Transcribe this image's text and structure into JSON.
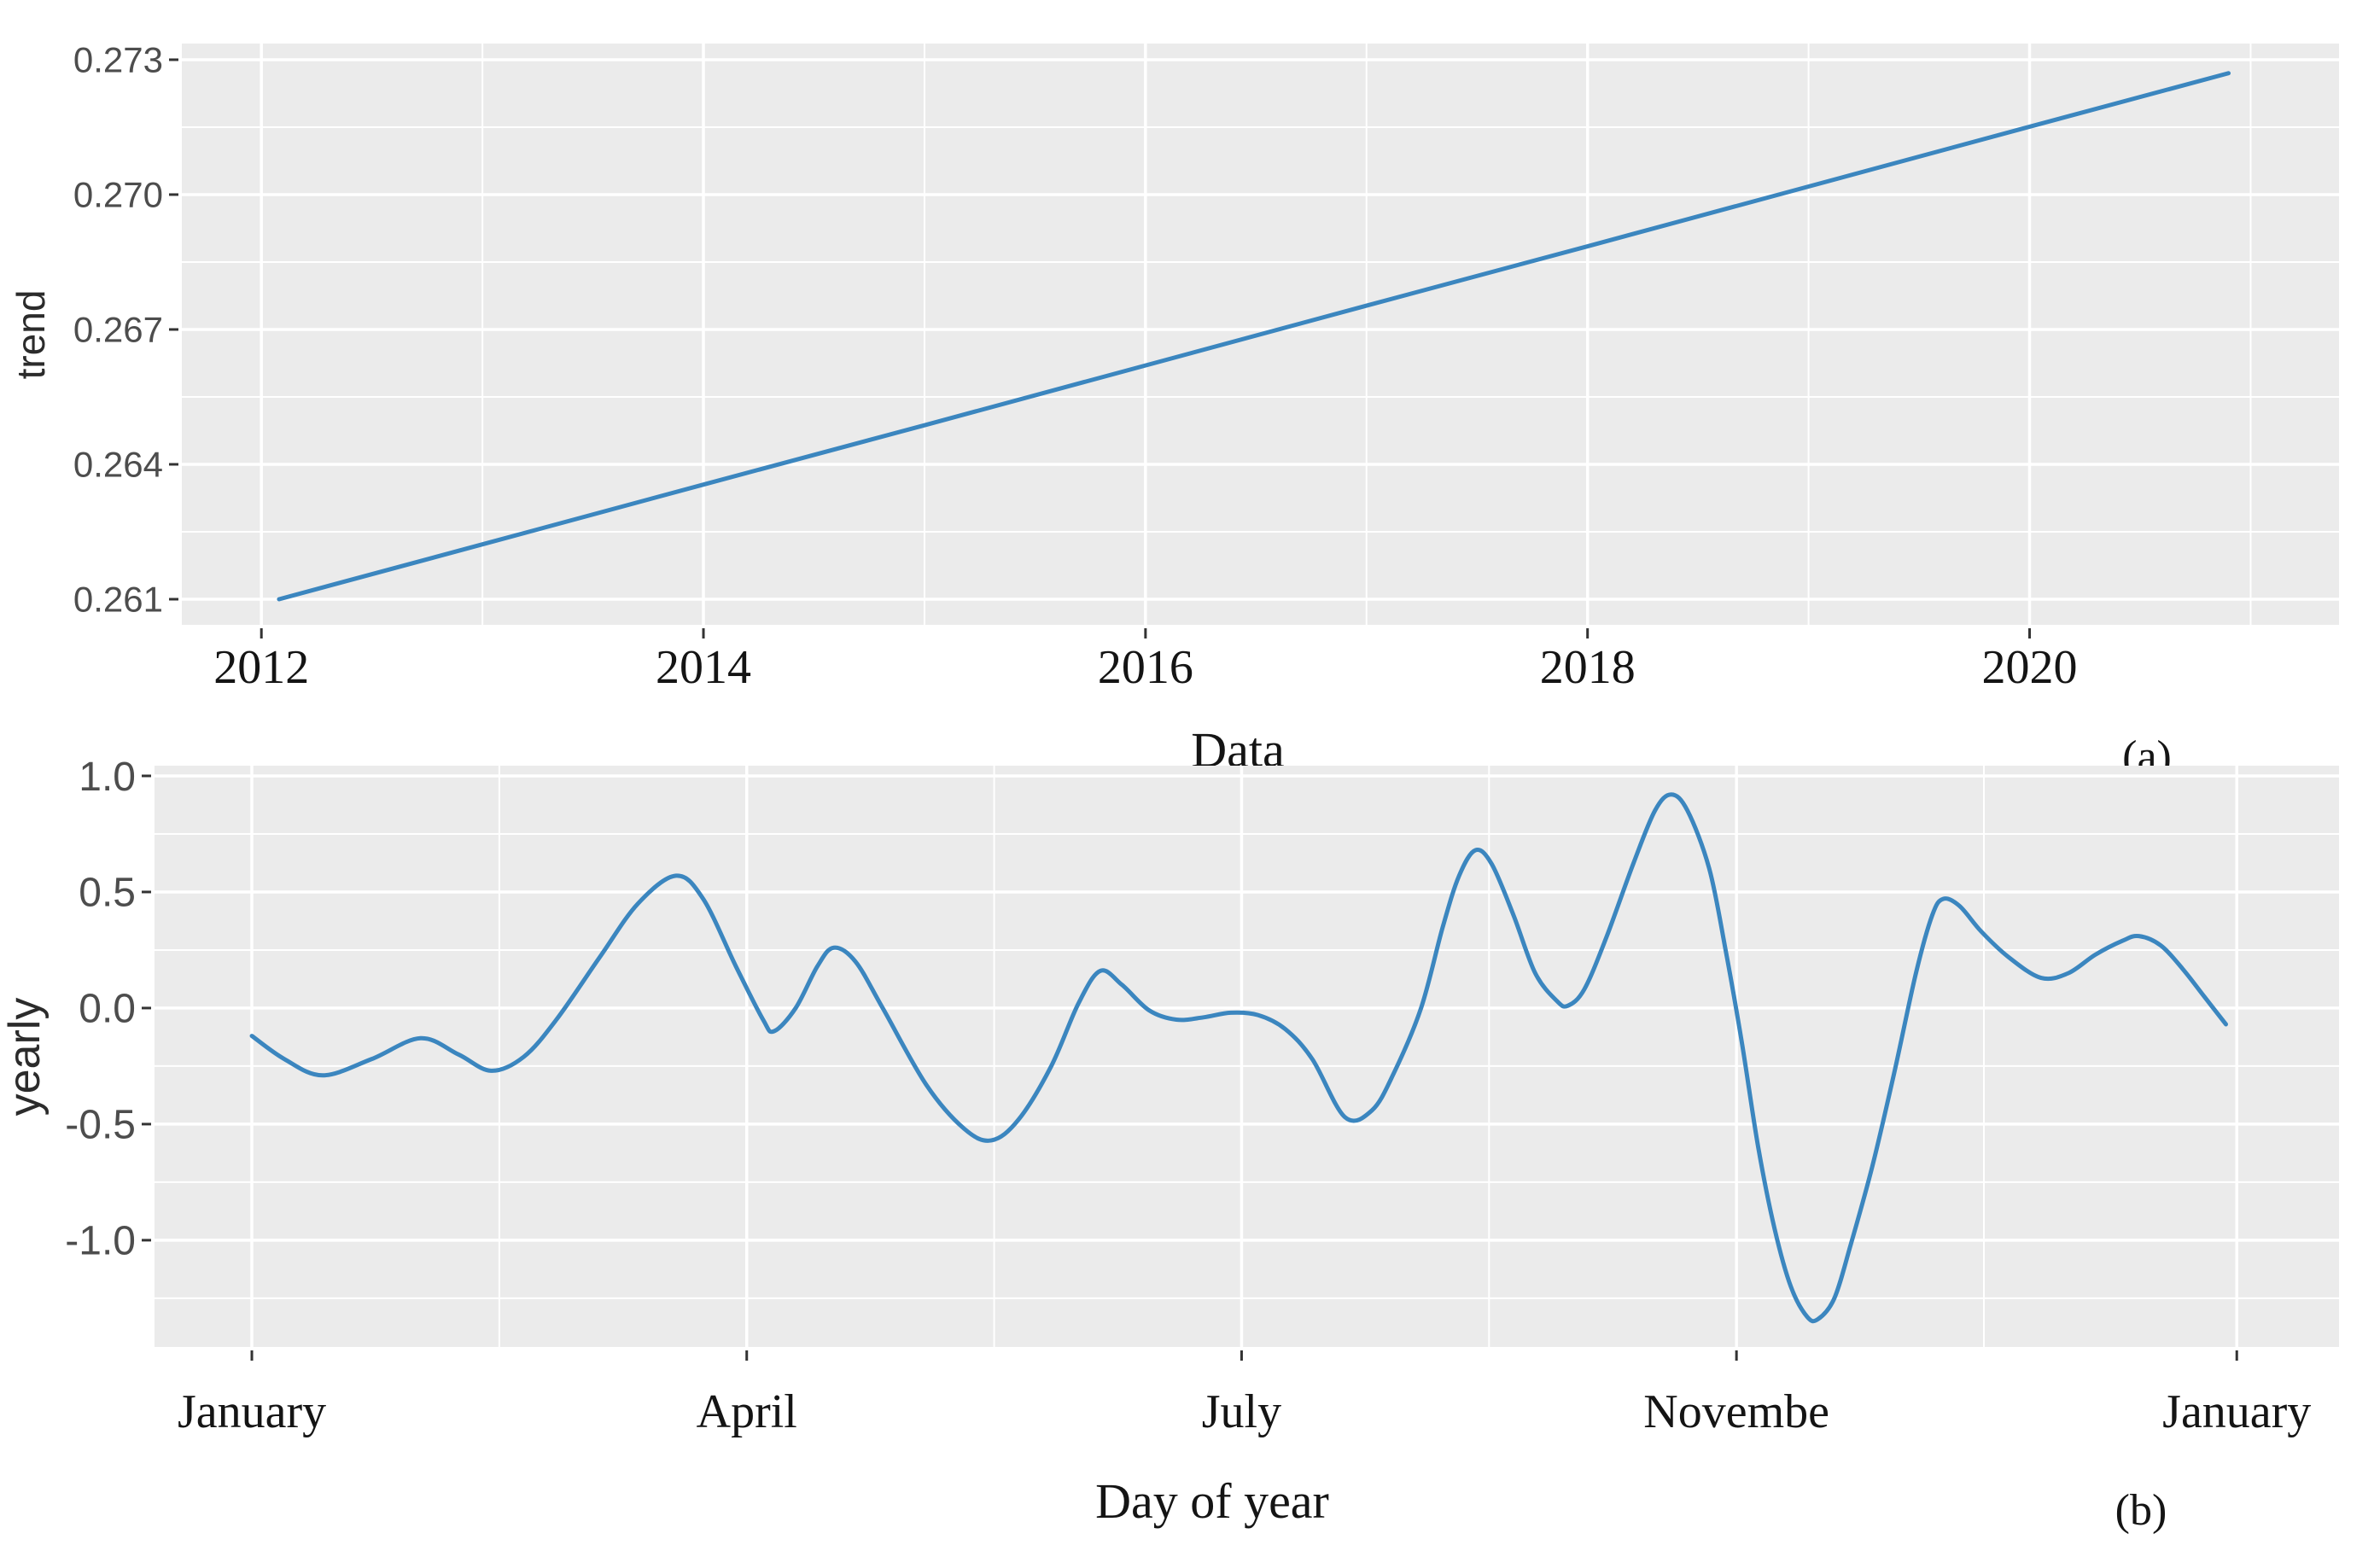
{
  "colors": {
    "line": "#3b86bf",
    "panel_bg": "#ebebeb",
    "grid": "#ffffff",
    "tick_label": "#4d4d4d",
    "serif_label": "#141414",
    "axis_title": "#2b2b2b",
    "tick_mark": "#333333"
  },
  "chart_data": [
    {
      "id": "trend",
      "type": "line",
      "title": "",
      "tag": "(a)",
      "xlabel": "Data",
      "ylabel": "trend",
      "legend": "none",
      "grid": "major+minor",
      "x_ticks": {
        "values": [
          2012,
          2014,
          2016,
          2018,
          2020
        ],
        "labels": [
          "2012",
          "2014",
          "2016",
          "2018",
          "2020"
        ]
      },
      "y_ticks": {
        "values": [
          0.261,
          0.264,
          0.267,
          0.27,
          0.273
        ],
        "labels": [
          "0.261",
          "0.264",
          "0.267",
          "0.270",
          "0.273"
        ]
      },
      "xlim": [
        2011.64,
        2021.4
      ],
      "ylim": [
        0.26043,
        0.27336
      ],
      "series": [
        {
          "name": "trend",
          "x": [
            2012.08,
            2013,
            2014,
            2015,
            2016,
            2017,
            2018,
            2019,
            2020,
            2020.9
          ],
          "y": [
            0.261,
            0.26222,
            0.26355,
            0.26487,
            0.2662,
            0.26753,
            0.26885,
            0.27018,
            0.27151,
            0.2727
          ]
        }
      ]
    },
    {
      "id": "yearly",
      "type": "line",
      "title": "",
      "tag": "(b)",
      "xlabel": "Day of year",
      "ylabel": "yearly",
      "legend": "none",
      "grid": "major+minor",
      "x_ticks": {
        "values": [
          0,
          91,
          182,
          273,
          365
        ],
        "labels": [
          "January",
          "April",
          "July",
          "Novembe",
          "January"
        ]
      },
      "y_ticks": {
        "values": [
          -1.0,
          -0.5,
          0.0,
          0.5,
          1.0
        ],
        "labels": [
          "-1.0",
          "-0.5",
          "0.0",
          "0.5",
          "1.0"
        ]
      },
      "xlim": [
        -17.9,
        383.8
      ],
      "ylim": [
        -1.46,
        1.044
      ],
      "series": [
        {
          "name": "yearly",
          "x": [
            0,
            6,
            13,
            22,
            31,
            38,
            44,
            50,
            56,
            64,
            71,
            78,
            83,
            89,
            94,
            96,
            100,
            104,
            107,
            111,
            116,
            124,
            131,
            136,
            141,
            147,
            152,
            156,
            160,
            165,
            170,
            175,
            180,
            185,
            190,
            195,
            201,
            206,
            210,
            215,
            219,
            222,
            225,
            228,
            232,
            236,
            240,
            242,
            245,
            249,
            254,
            258,
            261,
            264,
            268,
            271,
            274,
            277,
            280,
            283,
            286,
            288,
            291,
            294,
            298,
            302,
            306,
            309,
            311,
            314,
            318,
            323,
            329,
            334,
            339,
            344,
            347,
            351,
            355,
            359,
            363
          ],
          "y": [
            -0.12,
            -0.22,
            -0.29,
            -0.22,
            -0.13,
            -0.2,
            -0.27,
            -0.21,
            -0.05,
            0.22,
            0.45,
            0.57,
            0.47,
            0.18,
            -0.05,
            -0.1,
            0.0,
            0.18,
            0.26,
            0.2,
            0.0,
            -0.33,
            -0.52,
            -0.57,
            -0.48,
            -0.25,
            0.02,
            0.16,
            0.1,
            -0.01,
            -0.05,
            -0.04,
            -0.02,
            -0.03,
            -0.09,
            -0.22,
            -0.47,
            -0.44,
            -0.28,
            0.0,
            0.35,
            0.57,
            0.68,
            0.62,
            0.4,
            0.15,
            0.03,
            0.01,
            0.08,
            0.3,
            0.62,
            0.85,
            0.92,
            0.85,
            0.6,
            0.25,
            -0.15,
            -0.6,
            -0.95,
            -1.2,
            -1.33,
            -1.34,
            -1.25,
            -1.02,
            -0.68,
            -0.28,
            0.15,
            0.4,
            0.47,
            0.44,
            0.33,
            0.22,
            0.13,
            0.15,
            0.23,
            0.29,
            0.31,
            0.27,
            0.17,
            0.05,
            -0.07
          ]
        }
      ]
    }
  ]
}
